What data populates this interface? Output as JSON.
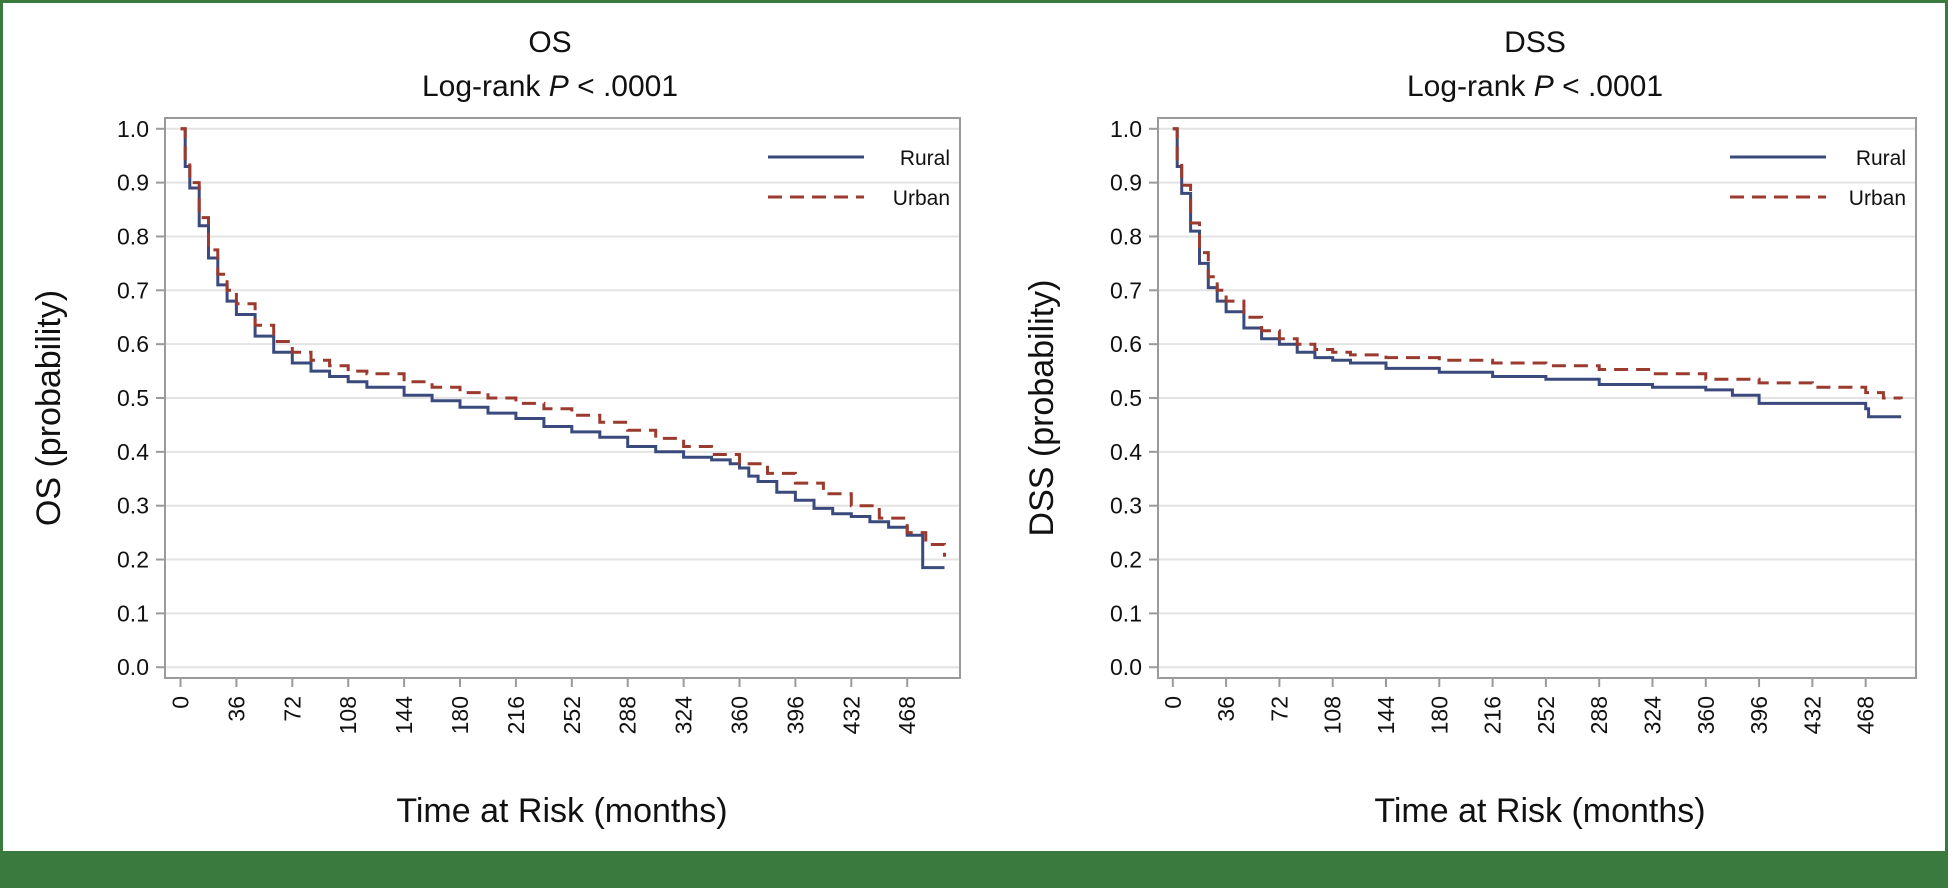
{
  "colors": {
    "rural": "#3b4a7d",
    "urban": "#9b3a2e",
    "grid": "#e3e3e3",
    "axis": "#9a9a9a",
    "frame_border": "#3a7a3f"
  },
  "chart_data": [
    {
      "type": "line",
      "title": "OS",
      "subtitle_prefix": "Log-rank ",
      "subtitle_italic": "P",
      "subtitle_suffix": " < .0001",
      "xlabel": "Time at Risk (months)",
      "ylabel": "OS (probability)",
      "xlim": [
        -10,
        502
      ],
      "ylim": [
        -0.02,
        1.02
      ],
      "xticks": [
        0,
        36,
        72,
        108,
        144,
        180,
        216,
        252,
        288,
        324,
        360,
        396,
        432,
        468
      ],
      "yticks": [
        "0.0",
        "0.1",
        "0.2",
        "0.3",
        "0.4",
        "0.5",
        "0.6",
        "0.7",
        "0.8",
        "0.9",
        "1.0"
      ],
      "grid": true,
      "legend": "top-right",
      "series": [
        {
          "name": "Rural",
          "style": "solid",
          "x": [
            0,
            3,
            6,
            12,
            18,
            24,
            30,
            36,
            48,
            60,
            72,
            84,
            96,
            108,
            120,
            144,
            162,
            180,
            198,
            216,
            234,
            252,
            270,
            288,
            306,
            324,
            342,
            354,
            360,
            366,
            372,
            384,
            396,
            408,
            420,
            432,
            444,
            456,
            468,
            478,
            478,
            492
          ],
          "y": [
            1.0,
            0.93,
            0.89,
            0.82,
            0.76,
            0.71,
            0.68,
            0.655,
            0.615,
            0.585,
            0.565,
            0.55,
            0.54,
            0.53,
            0.52,
            0.505,
            0.495,
            0.483,
            0.472,
            0.462,
            0.447,
            0.437,
            0.427,
            0.41,
            0.4,
            0.39,
            0.385,
            0.378,
            0.37,
            0.355,
            0.345,
            0.325,
            0.31,
            0.295,
            0.285,
            0.28,
            0.27,
            0.26,
            0.245,
            0.23,
            0.185,
            0.185
          ]
        },
        {
          "name": "Urban",
          "style": "dashed",
          "x": [
            0,
            3,
            6,
            12,
            18,
            24,
            30,
            36,
            48,
            60,
            72,
            84,
            96,
            108,
            120,
            144,
            162,
            180,
            198,
            216,
            234,
            252,
            270,
            288,
            306,
            324,
            342,
            360,
            378,
            396,
            414,
            432,
            450,
            468,
            480,
            492
          ],
          "y": [
            1.0,
            0.94,
            0.9,
            0.835,
            0.775,
            0.73,
            0.7,
            0.675,
            0.635,
            0.605,
            0.585,
            0.57,
            0.56,
            0.55,
            0.545,
            0.53,
            0.52,
            0.51,
            0.5,
            0.49,
            0.48,
            0.468,
            0.455,
            0.44,
            0.425,
            0.41,
            0.395,
            0.378,
            0.36,
            0.342,
            0.322,
            0.3,
            0.277,
            0.25,
            0.228,
            0.205
          ]
        }
      ]
    },
    {
      "type": "line",
      "title": "DSS",
      "subtitle_prefix": "Log-rank ",
      "subtitle_italic": "P",
      "subtitle_suffix": " < .0001",
      "xlabel": "Time at Risk (months)",
      "ylabel": "DSS (probability)",
      "xlim": [
        -10,
        502
      ],
      "ylim": [
        -0.02,
        1.02
      ],
      "xticks": [
        0,
        36,
        72,
        108,
        144,
        180,
        216,
        252,
        288,
        324,
        360,
        396,
        432,
        468
      ],
      "yticks": [
        "0.0",
        "0.1",
        "0.2",
        "0.3",
        "0.4",
        "0.5",
        "0.6",
        "0.7",
        "0.8",
        "0.9",
        "1.0"
      ],
      "grid": true,
      "legend": "top-right",
      "series": [
        {
          "name": "Rural",
          "style": "solid",
          "x": [
            0,
            3,
            6,
            12,
            18,
            24,
            30,
            36,
            48,
            60,
            72,
            84,
            96,
            108,
            120,
            144,
            180,
            216,
            252,
            288,
            324,
            360,
            378,
            396,
            432,
            468,
            470,
            492
          ],
          "y": [
            1.0,
            0.93,
            0.88,
            0.81,
            0.75,
            0.705,
            0.68,
            0.66,
            0.63,
            0.61,
            0.6,
            0.585,
            0.575,
            0.57,
            0.565,
            0.555,
            0.548,
            0.54,
            0.535,
            0.525,
            0.52,
            0.515,
            0.505,
            0.49,
            0.49,
            0.48,
            0.465,
            0.465
          ]
        },
        {
          "name": "Urban",
          "style": "dashed",
          "x": [
            0,
            3,
            6,
            12,
            18,
            24,
            30,
            36,
            48,
            60,
            72,
            84,
            96,
            108,
            120,
            144,
            180,
            216,
            252,
            288,
            324,
            360,
            396,
            432,
            468,
            480,
            492
          ],
          "y": [
            1.0,
            0.94,
            0.895,
            0.825,
            0.77,
            0.725,
            0.7,
            0.68,
            0.65,
            0.625,
            0.61,
            0.6,
            0.59,
            0.585,
            0.58,
            0.575,
            0.57,
            0.565,
            0.56,
            0.553,
            0.545,
            0.535,
            0.528,
            0.52,
            0.51,
            0.5,
            0.498
          ]
        }
      ]
    }
  ]
}
